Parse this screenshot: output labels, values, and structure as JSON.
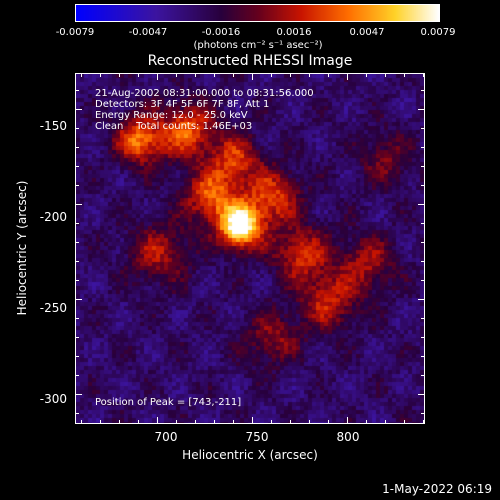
{
  "colorbar": {
    "tick_labels": [
      "-0.0079",
      "-0.0047",
      "-0.0016",
      "0.0016",
      "0.0047",
      "0.0079"
    ],
    "units": "(photons cm⁻² s⁻¹ asec⁻²)",
    "range": [
      -0.0079,
      0.0079
    ]
  },
  "chart_data": {
    "type": "heatmap",
    "title": "Reconstructed RHESSI Image",
    "xlabel": "Heliocentric X (arcsec)",
    "ylabel": "Heliocentric Y (arcsec)",
    "xlim": [
      657,
      841
    ],
    "ylim": [
      -316,
      -131
    ],
    "x_ticks": [
      700,
      750,
      800
    ],
    "y_ticks": [
      -150,
      -200,
      -250,
      -300
    ],
    "x_tick_labels": [
      "700",
      "750",
      "800"
    ],
    "y_tick_labels": [
      "-150",
      "-200",
      "-250",
      "-300"
    ],
    "colormap": "RHESSI color table (blue-purple-red-orange-yellow-white)",
    "peak": [
      743,
      -211
    ],
    "sources": [
      {
        "x": 743,
        "y": -211,
        "amplitude": 1.0,
        "sigma": 8
      },
      {
        "x": 728,
        "y": -195,
        "amplitude": 0.55,
        "sigma": 10
      },
      {
        "x": 760,
        "y": -195,
        "amplitude": 0.5,
        "sigma": 10
      },
      {
        "x": 690,
        "y": -165,
        "amplitude": 0.6,
        "sigma": 9
      },
      {
        "x": 715,
        "y": -160,
        "amplitude": 0.55,
        "sigma": 10
      },
      {
        "x": 740,
        "y": -175,
        "amplitude": 0.45,
        "sigma": 9
      },
      {
        "x": 775,
        "y": -225,
        "amplitude": 0.45,
        "sigma": 10
      },
      {
        "x": 790,
        "y": -250,
        "amplitude": 0.4,
        "sigma": 11
      },
      {
        "x": 810,
        "y": -230,
        "amplitude": 0.35,
        "sigma": 10
      },
      {
        "x": 700,
        "y": -225,
        "amplitude": 0.35,
        "sigma": 11
      },
      {
        "x": 760,
        "y": -270,
        "amplitude": 0.3,
        "sigma": 10
      },
      {
        "x": 820,
        "y": -175,
        "amplitude": 0.25,
        "sigma": 10
      }
    ]
  },
  "info": {
    "line1": "21-Aug-2002 08:31:00.000 to 08:31:56.000",
    "line2": "Detectors: 3F 4F 5F 6F 7F 8F, Att 1",
    "line3": "Energy Range: 12.0 - 25.0 keV",
    "line4": "Clean    Total counts: 1.46E+03"
  },
  "peak_label": "Position of Peak = [743,-211]",
  "footer_date": "1-May-2022 06:19"
}
